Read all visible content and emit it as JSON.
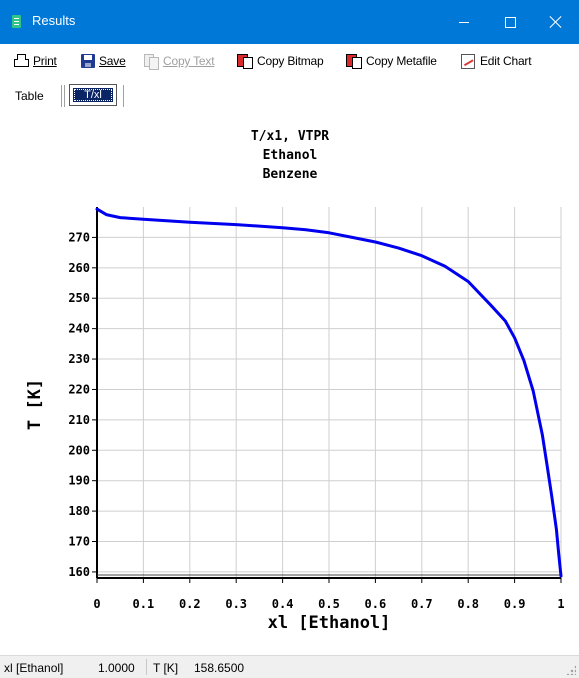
{
  "window": {
    "title": "Results"
  },
  "toolbar": {
    "print_label": "Print",
    "save_label": "Save",
    "copy_text_label": "Copy Text",
    "copy_bitmap_label": "Copy Bitmap",
    "copy_metafile_label": "Copy Metafile",
    "edit_chart_label": "Edit Chart"
  },
  "tabs": {
    "table_label": "Table",
    "txl_label": "T/xl"
  },
  "status": {
    "x_label": "xl [Ethanol]",
    "x_value": "1.0000",
    "y_label": "T [K]",
    "y_value": "158.6500"
  },
  "chart_data": {
    "type": "line",
    "title_lines": [
      "T/x1, VTPR",
      "Ethanol",
      "Benzene"
    ],
    "xlabel": "xl [Ethanol]",
    "ylabel": "T [K]",
    "xlim": [
      0,
      1
    ],
    "ylim": [
      158,
      280
    ],
    "x_ticks": [
      "0",
      "0.1",
      "0.2",
      "0.3",
      "0.4",
      "0.5",
      "0.6",
      "0.7",
      "0.8",
      "0.9",
      "1"
    ],
    "y_ticks": [
      "160",
      "170",
      "180",
      "190",
      "200",
      "210",
      "220",
      "230",
      "240",
      "250",
      "260",
      "270"
    ],
    "y_tick_values": [
      160,
      170,
      180,
      190,
      200,
      210,
      220,
      230,
      240,
      250,
      260,
      270
    ],
    "grid": true,
    "line_color": "#0000ee",
    "series": [
      {
        "x": [
          0,
          0.02,
          0.05,
          0.1,
          0.15,
          0.2,
          0.3,
          0.4,
          0.45,
          0.5,
          0.55,
          0.6,
          0.65,
          0.7,
          0.75,
          0.8,
          0.85,
          0.88,
          0.9,
          0.92,
          0.94,
          0.96,
          0.97,
          0.98,
          0.99,
          0.995,
          1.0
        ],
        "y": [
          279.3,
          277.5,
          276.5,
          276.0,
          275.5,
          275.0,
          274.2,
          273.2,
          272.5,
          271.5,
          270.0,
          268.5,
          266.5,
          264.0,
          260.5,
          255.5,
          247.5,
          242.5,
          237.0,
          229.5,
          219.5,
          205.0,
          195.0,
          185.0,
          174.0,
          166.0,
          158.65
        ]
      }
    ]
  }
}
